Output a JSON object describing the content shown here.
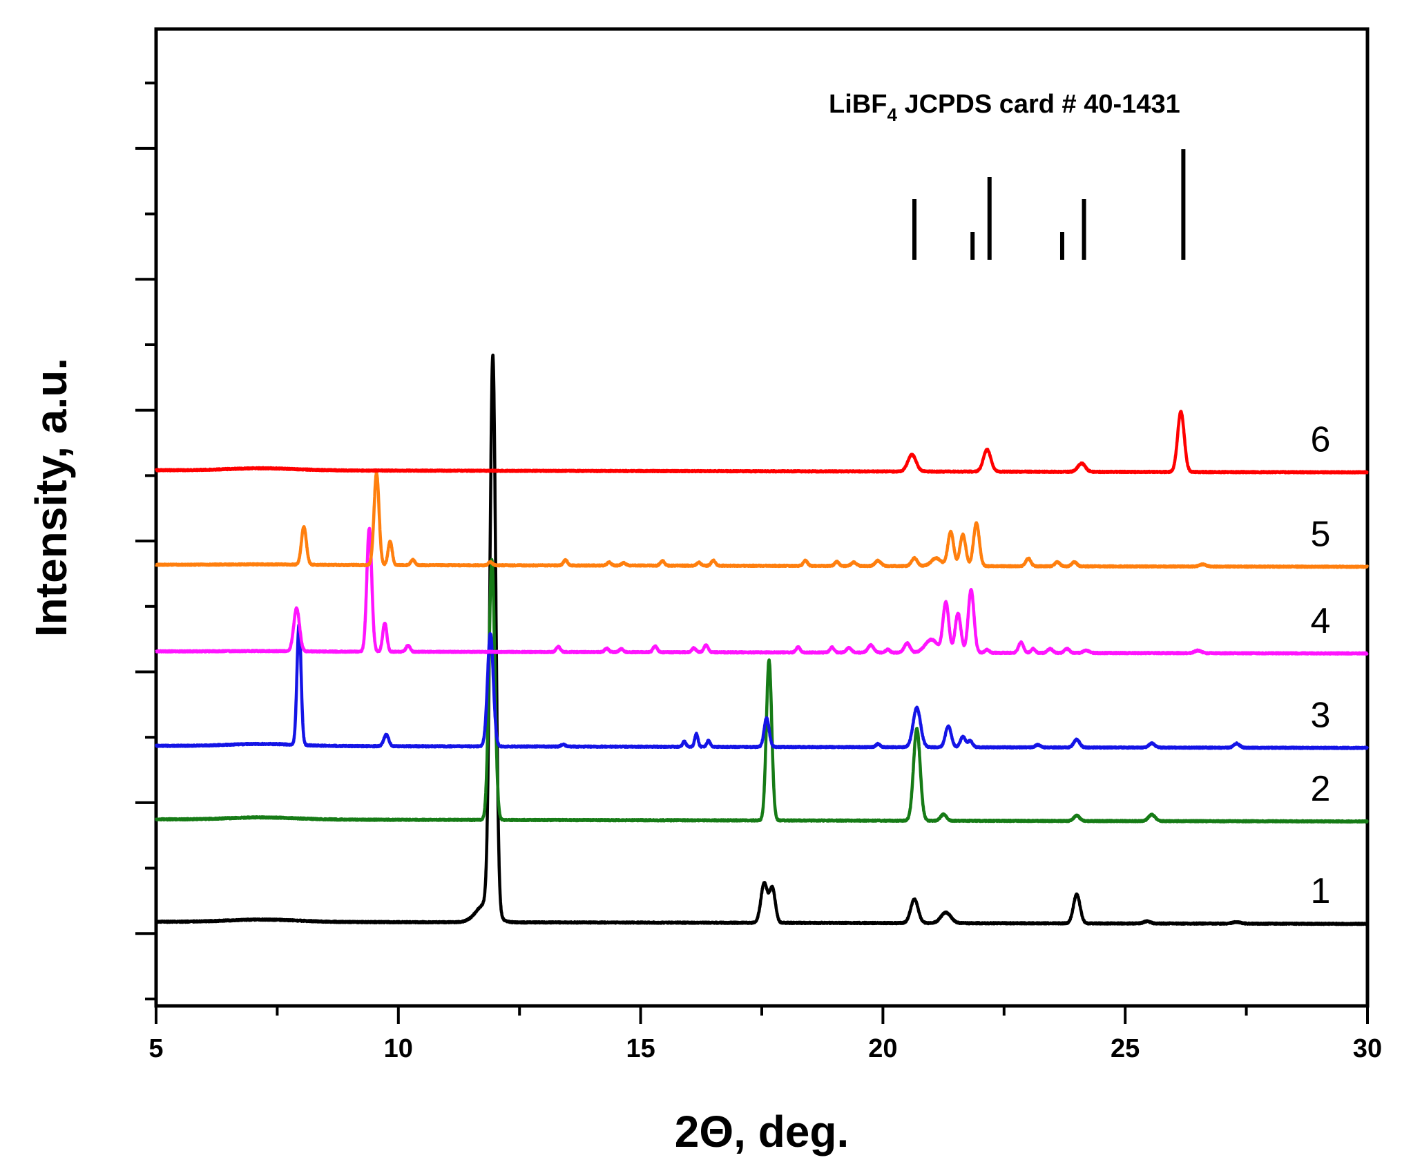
{
  "chart_data": {
    "type": "line",
    "title": "",
    "xlabel": "2Θ, deg.",
    "ylabel": "Intensity, a.u.",
    "xlim": [
      5,
      30
    ],
    "x_ticks": [
      5,
      10,
      15,
      20,
      25,
      30
    ],
    "y_ticks_shown": false,
    "reference": {
      "label_main": "LiBF",
      "label_sub": "4",
      "label_rest": " JCPDS card # 40-1431",
      "positions": [
        20.65,
        21.85,
        22.2,
        23.7,
        24.15,
        26.2
      ],
      "heights": [
        0.55,
        0.25,
        0.75,
        0.25,
        0.55,
        1.0
      ]
    },
    "series": [
      {
        "name": "1",
        "color": "#000000",
        "offset": 0,
        "base": 0.05,
        "slope": -0.0016,
        "hump": {
          "x": 7.2,
          "h": 0.045,
          "w": 1.0
        },
        "peaks": [
          {
            "x": 11.95,
            "h": 10.55,
            "w": 0.07
          },
          {
            "x": 11.8,
            "h": 0.35,
            "w": 0.22
          },
          {
            "x": 17.55,
            "h": 0.75,
            "w": 0.08
          },
          {
            "x": 17.72,
            "h": 0.65,
            "w": 0.07
          },
          {
            "x": 20.65,
            "h": 0.45,
            "w": 0.09
          },
          {
            "x": 21.3,
            "h": 0.2,
            "w": 0.12
          },
          {
            "x": 24.0,
            "h": 0.55,
            "w": 0.08
          },
          {
            "x": 25.45,
            "h": 0.04,
            "w": 0.08
          },
          {
            "x": 27.3,
            "h": 0.03,
            "w": 0.1
          }
        ]
      },
      {
        "name": "2",
        "color": "#167b16",
        "offset": 1.95,
        "base": 0.05,
        "slope": -0.0016,
        "hump": {
          "x": 7.2,
          "h": 0.04,
          "w": 1.0
        },
        "peaks": [
          {
            "x": 11.93,
            "h": 4.95,
            "w": 0.07
          },
          {
            "x": 17.65,
            "h": 3.05,
            "w": 0.065
          },
          {
            "x": 20.7,
            "h": 1.75,
            "w": 0.08
          },
          {
            "x": 21.25,
            "h": 0.12,
            "w": 0.07
          },
          {
            "x": 24.0,
            "h": 0.1,
            "w": 0.07
          },
          {
            "x": 25.55,
            "h": 0.12,
            "w": 0.08
          }
        ]
      },
      {
        "name": "3",
        "color": "#1414e6",
        "offset": 3.35,
        "base": 0.05,
        "slope": -0.0016,
        "hump": {
          "x": 7.2,
          "h": 0.04,
          "w": 1.0
        },
        "peaks": [
          {
            "x": 7.95,
            "h": 2.3,
            "w": 0.05
          },
          {
            "x": 9.75,
            "h": 0.22,
            "w": 0.06
          },
          {
            "x": 11.9,
            "h": 2.15,
            "w": 0.07
          },
          {
            "x": 13.4,
            "h": 0.04,
            "w": 0.05
          },
          {
            "x": 15.9,
            "h": 0.1,
            "w": 0.04
          },
          {
            "x": 16.15,
            "h": 0.25,
            "w": 0.04
          },
          {
            "x": 16.4,
            "h": 0.12,
            "w": 0.04
          },
          {
            "x": 17.6,
            "h": 0.55,
            "w": 0.06
          },
          {
            "x": 19.9,
            "h": 0.06,
            "w": 0.05
          },
          {
            "x": 20.7,
            "h": 0.75,
            "w": 0.09
          },
          {
            "x": 21.35,
            "h": 0.4,
            "w": 0.07
          },
          {
            "x": 21.65,
            "h": 0.2,
            "w": 0.06
          },
          {
            "x": 21.8,
            "h": 0.12,
            "w": 0.06
          },
          {
            "x": 23.2,
            "h": 0.05,
            "w": 0.06
          },
          {
            "x": 24.0,
            "h": 0.15,
            "w": 0.07
          },
          {
            "x": 25.55,
            "h": 0.08,
            "w": 0.07
          },
          {
            "x": 27.3,
            "h": 0.08,
            "w": 0.07
          }
        ]
      },
      {
        "name": "4",
        "color": "#ff14ff",
        "offset": 5.15,
        "base": 0.05,
        "slope": -0.0016,
        "hump": {
          "x": 7.2,
          "h": 0.01,
          "w": 1.0
        },
        "peaks": [
          {
            "x": 7.9,
            "h": 0.82,
            "w": 0.07
          },
          {
            "x": 9.4,
            "h": 2.35,
            "w": 0.06
          },
          {
            "x": 9.72,
            "h": 0.55,
            "w": 0.05
          },
          {
            "x": 10.2,
            "h": 0.12,
            "w": 0.05
          },
          {
            "x": 13.3,
            "h": 0.1,
            "w": 0.05
          },
          {
            "x": 14.3,
            "h": 0.07,
            "w": 0.05
          },
          {
            "x": 14.6,
            "h": 0.06,
            "w": 0.05
          },
          {
            "x": 15.3,
            "h": 0.12,
            "w": 0.05
          },
          {
            "x": 16.1,
            "h": 0.08,
            "w": 0.05
          },
          {
            "x": 16.35,
            "h": 0.14,
            "w": 0.05
          },
          {
            "x": 18.25,
            "h": 0.1,
            "w": 0.05
          },
          {
            "x": 18.95,
            "h": 0.1,
            "w": 0.05
          },
          {
            "x": 19.3,
            "h": 0.09,
            "w": 0.06
          },
          {
            "x": 19.75,
            "h": 0.14,
            "w": 0.07
          },
          {
            "x": 20.1,
            "h": 0.06,
            "w": 0.05
          },
          {
            "x": 20.5,
            "h": 0.18,
            "w": 0.07
          },
          {
            "x": 21.0,
            "h": 0.25,
            "w": 0.15
          },
          {
            "x": 21.3,
            "h": 0.95,
            "w": 0.07
          },
          {
            "x": 21.55,
            "h": 0.75,
            "w": 0.07
          },
          {
            "x": 21.82,
            "h": 1.2,
            "w": 0.07
          },
          {
            "x": 22.15,
            "h": 0.06,
            "w": 0.05
          },
          {
            "x": 22.85,
            "h": 0.2,
            "w": 0.06
          },
          {
            "x": 23.1,
            "h": 0.08,
            "w": 0.05
          },
          {
            "x": 23.45,
            "h": 0.08,
            "w": 0.06
          },
          {
            "x": 23.8,
            "h": 0.08,
            "w": 0.06
          },
          {
            "x": 24.2,
            "h": 0.05,
            "w": 0.07
          },
          {
            "x": 26.5,
            "h": 0.05,
            "w": 0.08
          }
        ]
      },
      {
        "name": "5",
        "color": "#ff7f0e",
        "offset": 6.8,
        "base": 0.05,
        "slope": -0.0016,
        "hump": {
          "x": 7.2,
          "h": 0.01,
          "w": 1.0
        },
        "peaks": [
          {
            "x": 8.05,
            "h": 0.72,
            "w": 0.06
          },
          {
            "x": 9.55,
            "h": 1.75,
            "w": 0.06
          },
          {
            "x": 9.83,
            "h": 0.45,
            "w": 0.05
          },
          {
            "x": 10.3,
            "h": 0.1,
            "w": 0.05
          },
          {
            "x": 11.9,
            "h": 0.06,
            "w": 0.05
          },
          {
            "x": 13.45,
            "h": 0.1,
            "w": 0.05
          },
          {
            "x": 14.35,
            "h": 0.06,
            "w": 0.05
          },
          {
            "x": 14.65,
            "h": 0.05,
            "w": 0.05
          },
          {
            "x": 15.45,
            "h": 0.09,
            "w": 0.05
          },
          {
            "x": 16.2,
            "h": 0.06,
            "w": 0.05
          },
          {
            "x": 16.5,
            "h": 0.1,
            "w": 0.05
          },
          {
            "x": 18.4,
            "h": 0.1,
            "w": 0.05
          },
          {
            "x": 19.05,
            "h": 0.08,
            "w": 0.05
          },
          {
            "x": 19.4,
            "h": 0.07,
            "w": 0.06
          },
          {
            "x": 19.9,
            "h": 0.1,
            "w": 0.07
          },
          {
            "x": 20.65,
            "h": 0.15,
            "w": 0.07
          },
          {
            "x": 21.1,
            "h": 0.15,
            "w": 0.12
          },
          {
            "x": 21.4,
            "h": 0.65,
            "w": 0.07
          },
          {
            "x": 21.65,
            "h": 0.6,
            "w": 0.07
          },
          {
            "x": 21.93,
            "h": 0.82,
            "w": 0.07
          },
          {
            "x": 23.0,
            "h": 0.15,
            "w": 0.06
          },
          {
            "x": 23.6,
            "h": 0.08,
            "w": 0.06
          },
          {
            "x": 23.95,
            "h": 0.08,
            "w": 0.06
          },
          {
            "x": 26.6,
            "h": 0.04,
            "w": 0.08
          }
        ]
      },
      {
        "name": "6",
        "color": "#ff0000",
        "offset": 8.6,
        "base": 0.05,
        "slope": -0.0016,
        "hump": {
          "x": 7.2,
          "h": 0.04,
          "w": 1.0
        },
        "peaks": [
          {
            "x": 20.6,
            "h": 0.32,
            "w": 0.1
          },
          {
            "x": 22.15,
            "h": 0.42,
            "w": 0.09
          },
          {
            "x": 24.1,
            "h": 0.16,
            "w": 0.09
          },
          {
            "x": 26.15,
            "h": 1.15,
            "w": 0.08
          }
        ]
      }
    ]
  }
}
